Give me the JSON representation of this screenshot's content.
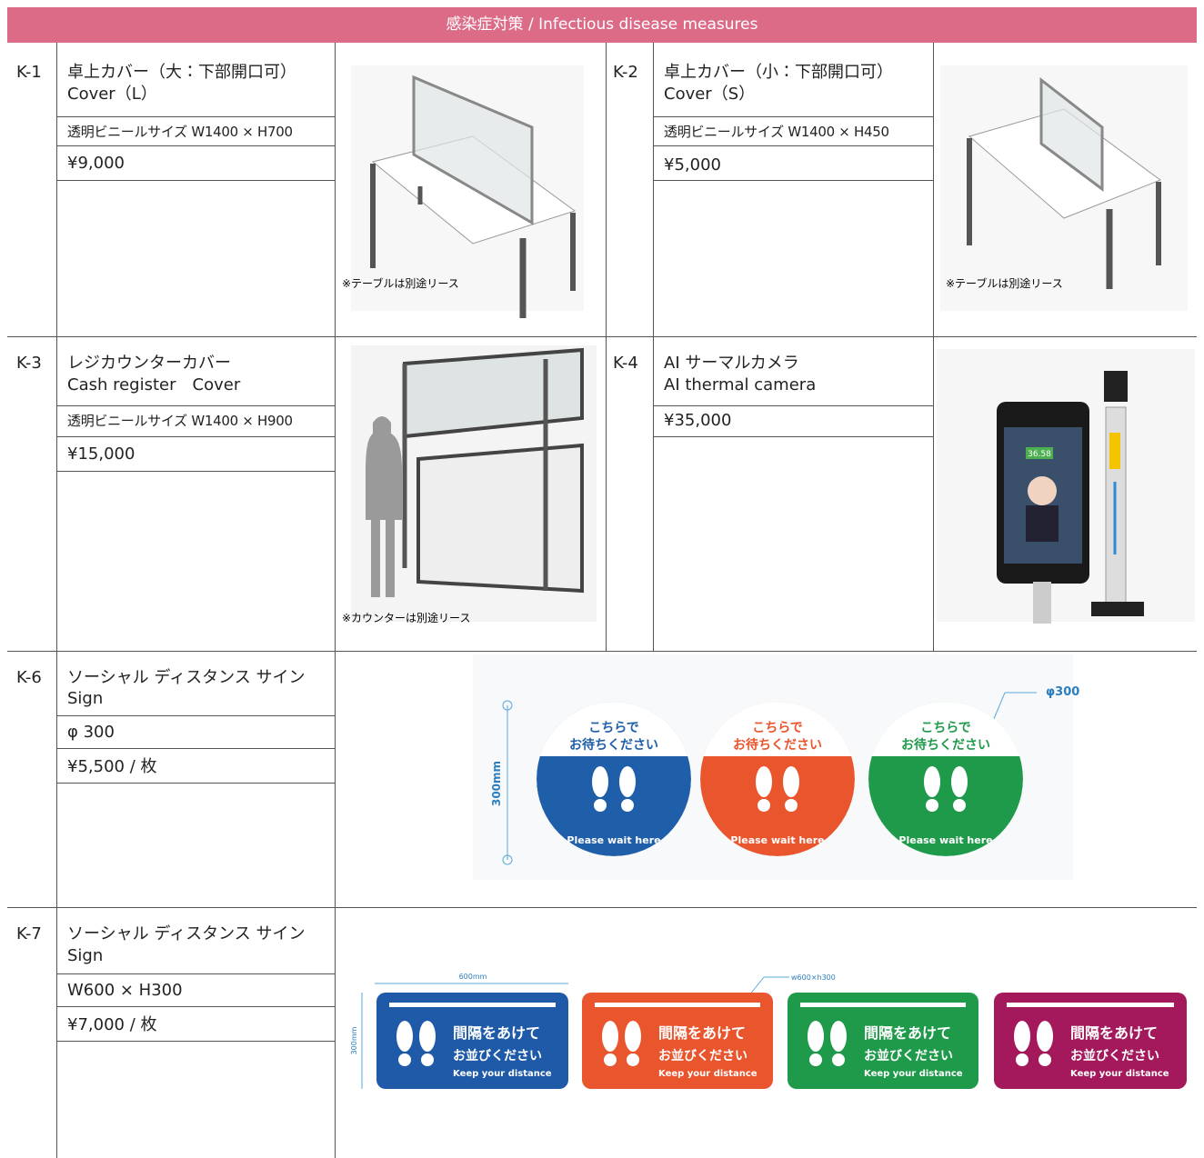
{
  "header": {
    "title": "感染症対策 / Infectious disease measures"
  },
  "items": [
    {
      "code": "K-1",
      "name_ja": "卓上カバー（大：下部開口可）",
      "name_en": "Cover（L）",
      "spec": "透明ビニールサイズ W1400 × H700",
      "price": "¥9,000",
      "note": "※テーブルは別途リース"
    },
    {
      "code": "K-2",
      "name_ja": "卓上カバー（小：下部開口可）",
      "name_en": "Cover（S）",
      "spec": "透明ビニールサイズ W1400 × H450",
      "price": "¥5,000",
      "note": "※テーブルは別途リース"
    },
    {
      "code": "K-3",
      "name_ja": "レジカウンターカバー",
      "name_en": "Cash register　Cover",
      "spec": "透明ビニールサイズ W1400 × H900",
      "price": "¥15,000",
      "note": "※カウンターは別途リース"
    },
    {
      "code": "K-4",
      "name_ja": "AI サーマルカメラ",
      "name_en": "AI thermal camera",
      "price": "¥35,000",
      "screen": "36.58"
    },
    {
      "code": "K-6",
      "name_ja": "ソーシャル ディスタンス サイン",
      "name_en": "Sign",
      "spec": "φ 300",
      "price": "¥5,500 / 枚",
      "sign": {
        "line1": "こちらで",
        "line2": "お待ちください",
        "footer": "Please wait here",
        "height": "300mm",
        "diameter": "φ300"
      }
    },
    {
      "code": "K-7",
      "name_ja": "ソーシャル ディスタンス サイン",
      "name_en": "Sign",
      "spec": "W600 × H300",
      "price": "¥7,000 / 枚",
      "sign": {
        "line1": "間隔をあけて",
        "line2": "お並びください",
        "footer": "Keep your distance",
        "width": "600mm",
        "height": "300mm",
        "size": "w600×h300"
      }
    }
  ]
}
